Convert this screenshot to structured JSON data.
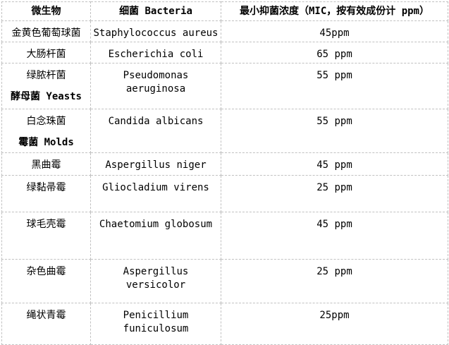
{
  "colors": {
    "border": "#c1c1c1",
    "text": "#000000",
    "background": "#ffffff"
  },
  "table": {
    "columns": [
      {
        "label": "微生物"
      },
      {
        "label": "细菌 Bacteria"
      },
      {
        "label": "最小抑菌浓度（MIC，按有效成份计 ppm）"
      }
    ],
    "rows": [
      {
        "cn": "金黄色葡萄球菌",
        "latin": "Staphylococcus aureus",
        "mic": "45ppm"
      },
      {
        "cn": "大肠杆菌",
        "latin": "Escherichia coli",
        "mic": "65 ppm"
      },
      {
        "cn": "绿脓杆菌",
        "latin": "Pseudomonas aeruginosa",
        "mic": "55 ppm",
        "section": "酵母菌 Yeasts"
      },
      {
        "cn": "白念珠菌",
        "latin": "Candida albicans",
        "mic": "55 ppm",
        "section": "霉菌 Molds"
      },
      {
        "cn": "黑曲霉",
        "latin": "Aspergillus niger",
        "mic": "45 ppm"
      },
      {
        "cn": "绿黏帚霉",
        "latin": "Gliocladium virens",
        "mic": "25 ppm"
      },
      {
        "cn": "球毛壳霉",
        "latin": "Chaetomium globosum",
        "mic": "45 ppm"
      },
      {
        "cn": "杂色曲霉",
        "latin": "Aspergillus versicolor",
        "mic": "25 ppm"
      },
      {
        "cn": "绳状青霉",
        "latin": "Penicillium funiculosum",
        "mic": "25ppm"
      }
    ]
  }
}
